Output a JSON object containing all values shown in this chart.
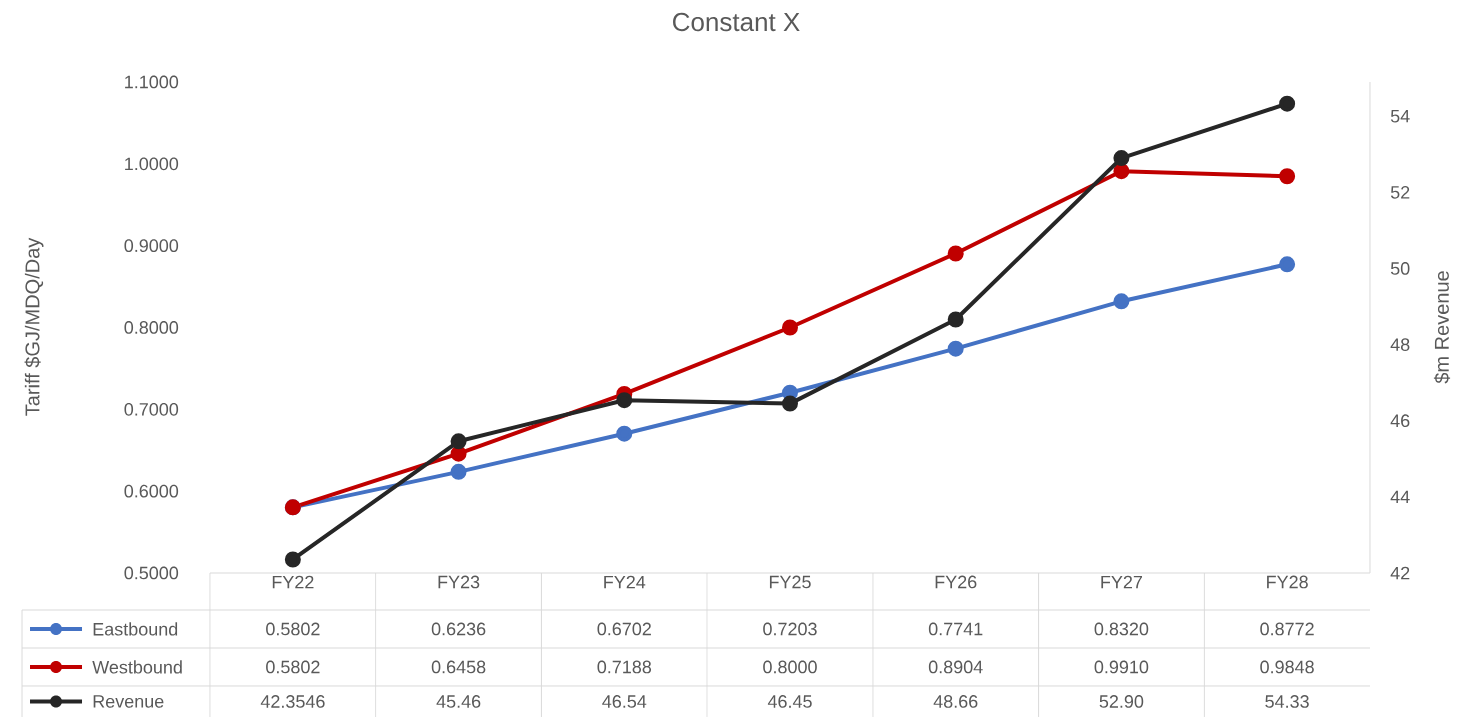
{
  "chart_data": {
    "type": "line",
    "title": "Constant X",
    "ylabel": "Tariff $GJ/MDQ/Day",
    "y2label": "$m Revenue",
    "categories": [
      "FY22",
      "FY23",
      "FY24",
      "FY25",
      "FY26",
      "FY27",
      "FY28"
    ],
    "series": [
      {
        "name": "Eastbound",
        "color": "#4472c4",
        "values": [
          0.5802,
          0.6236,
          0.6702,
          0.7203,
          0.7741,
          0.832,
          0.8772
        ],
        "value_labels": [
          "0.5802",
          "0.6236",
          "0.6702",
          "0.7203",
          "0.7741",
          "0.8320",
          "0.8772"
        ]
      },
      {
        "name": "Westbound",
        "color": "#c00000",
        "values": [
          0.5802,
          0.6458,
          0.7188,
          0.8,
          0.8904,
          0.991,
          0.9848
        ],
        "value_labels": [
          "0.5802",
          "0.6458",
          "0.7188",
          "0.8000",
          "0.8904",
          "0.9910",
          "0.9848"
        ]
      },
      {
        "name": "Revenue",
        "color": "#262626",
        "axis": "y2",
        "values": [
          42.3546,
          45.46,
          46.54,
          46.45,
          48.66,
          52.9,
          54.33
        ],
        "value_labels": [
          "42.3546",
          "45.46",
          "46.54",
          "46.45",
          "48.66",
          "52.90",
          "54.33"
        ]
      }
    ],
    "ylim": [
      0.5,
      1.1
    ],
    "yticks": [
      {
        "value": 0.5,
        "label": "0.5000"
      },
      {
        "value": 0.6,
        "label": "0.6000"
      },
      {
        "value": 0.7,
        "label": "0.7000"
      },
      {
        "value": 0.8,
        "label": "0.8000"
      },
      {
        "value": 0.9,
        "label": "0.9000"
      },
      {
        "value": 1.0,
        "label": "1.0000"
      },
      {
        "value": 1.1,
        "label": "1.1000"
      }
    ],
    "y2lim": [
      42,
      54.9
    ],
    "y2ticks": [
      42,
      44,
      46,
      48,
      50,
      52,
      54
    ],
    "legend": "bottom",
    "marker": "circle",
    "line_style": "solid"
  }
}
